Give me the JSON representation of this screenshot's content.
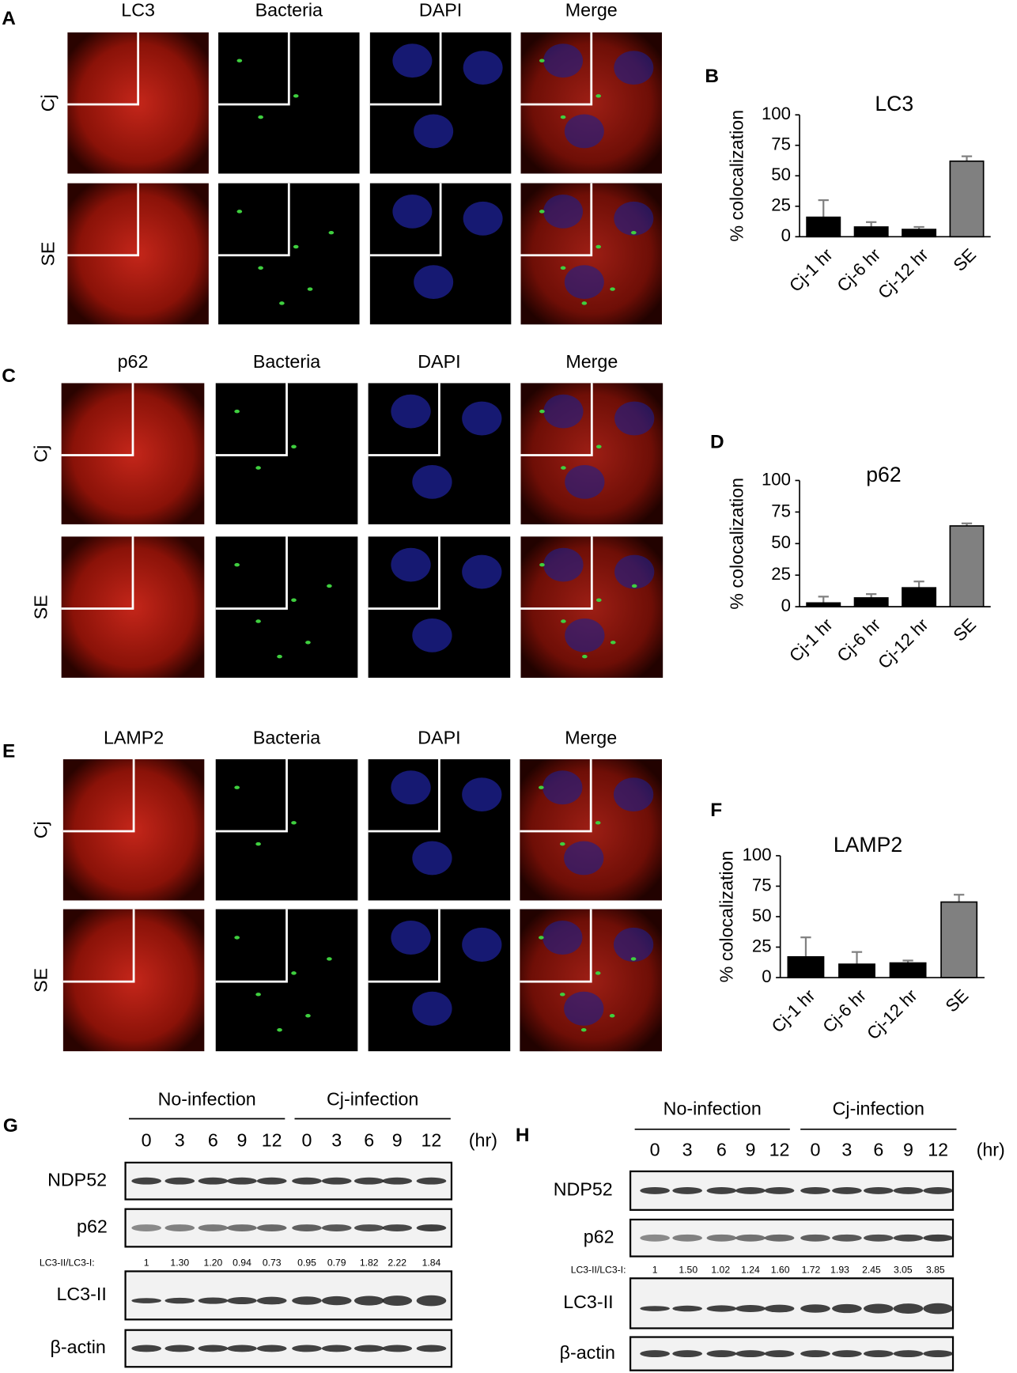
{
  "panels": [
    {
      "letter": "A",
      "columns": [
        "LC3",
        "Bacteria",
        "DAPI",
        "Merge"
      ],
      "rows": [
        "Cj",
        "SE"
      ]
    },
    {
      "letter": "C",
      "columns": [
        "p62",
        "Bacteria",
        "DAPI",
        "Merge"
      ],
      "rows": [
        "Cj",
        "SE"
      ]
    },
    {
      "letter": "E",
      "columns": [
        "LAMP2",
        "Bacteria",
        "DAPI",
        "Merge"
      ],
      "rows": [
        "Cj",
        "SE"
      ]
    }
  ],
  "chart_data": [
    {
      "type": "bar",
      "panel": "B",
      "title": "LC3",
      "ylabel": "% colocalization",
      "categories": [
        "Cj-1 hr",
        "Cj-6 hr",
        "Cj-12 hr",
        "SE"
      ],
      "values": [
        16,
        8,
        6,
        62
      ],
      "errors": [
        14,
        4,
        2,
        4
      ],
      "colors": [
        "#000000",
        "#000000",
        "#000000",
        "#808080"
      ],
      "error_color": "#808080",
      "ylim": [
        0,
        100
      ],
      "yticks": [
        0,
        25,
        50,
        75,
        100
      ]
    },
    {
      "type": "bar",
      "panel": "D",
      "title": "p62",
      "ylabel": "% colocalization",
      "categories": [
        "Cj-1 hr",
        "Cj-6 hr",
        "Cj-12 hr",
        "SE"
      ],
      "values": [
        3,
        7,
        15,
        64
      ],
      "errors": [
        5,
        3,
        5,
        2
      ],
      "colors": [
        "#000000",
        "#000000",
        "#000000",
        "#808080"
      ],
      "error_color": "#808080",
      "ylim": [
        0,
        100
      ],
      "yticks": [
        0,
        25,
        50,
        75,
        100
      ]
    },
    {
      "type": "bar",
      "panel": "F",
      "title": "LAMP2",
      "ylabel": "% colocalization",
      "categories": [
        "Cj-1 hr",
        "Cj-6 hr",
        "Cj-12 hr",
        "SE"
      ],
      "values": [
        17,
        11,
        12,
        62
      ],
      "errors": [
        16,
        10,
        2,
        6
      ],
      "colors": [
        "#000000",
        "#000000",
        "#000000",
        "#808080"
      ],
      "error_color": "#808080",
      "ylim": [
        0,
        100
      ],
      "yticks": [
        0,
        25,
        50,
        75,
        100
      ]
    }
  ],
  "blots": [
    {
      "letter": "G",
      "groups": [
        "No-infection",
        "Cj-infection"
      ],
      "times": [
        "0",
        "3",
        "6",
        "9",
        "12",
        "0",
        "3",
        "6",
        "9",
        "12"
      ],
      "unit": "(hr)",
      "rows": [
        "NDP52",
        "p62",
        "LC3-II",
        "β-actin"
      ],
      "ratio_label": "LC3-II/LC3-I:",
      "ratios": [
        "1",
        "1.30",
        "1.20",
        "0.94",
        "0.73",
        "0.95",
        "0.79",
        "1.82",
        "2.22",
        "1.84"
      ]
    },
    {
      "letter": "H",
      "groups": [
        "No-infection",
        "Cj-infection"
      ],
      "times": [
        "0",
        "3",
        "6",
        "9",
        "12",
        "0",
        "3",
        "6",
        "9",
        "12"
      ],
      "unit": "(hr)",
      "rows": [
        "NDP52",
        "p62",
        "LC3-II",
        "β-actin"
      ],
      "ratio_label": "LC3-II/LC3-I:",
      "ratios": [
        "1",
        "1.50",
        "1.02",
        "1.24",
        "1.60",
        "1.72",
        "1.93",
        "2.45",
        "3.05",
        "3.85"
      ]
    }
  ]
}
